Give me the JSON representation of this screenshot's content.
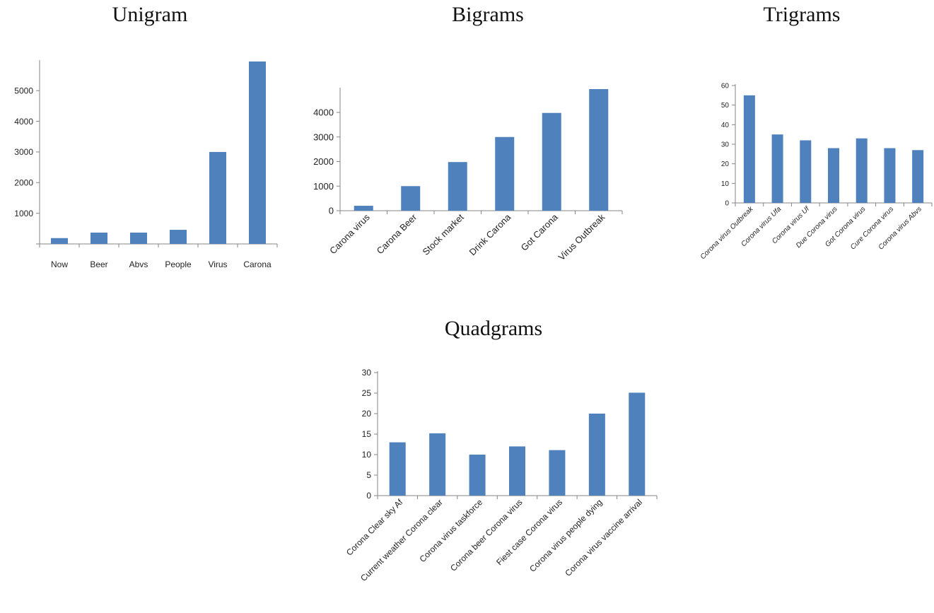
{
  "colors": {
    "bar": "#4f81bd",
    "axis": "#868686",
    "text": "#222222"
  },
  "chart_data": [
    {
      "id": "unigram",
      "type": "bar",
      "title": "Unigram",
      "categories": [
        "Now",
        "Beer",
        "Abvs",
        "People",
        "Virus",
        "Carona"
      ],
      "values": [
        190,
        370,
        370,
        460,
        3000,
        5950
      ],
      "ylim": [
        0,
        5950
      ],
      "yticks": [
        1000,
        2000,
        3000,
        4000,
        5000
      ],
      "xlabel": "",
      "ylabel": "",
      "grid": false,
      "legend": "none"
    },
    {
      "id": "bigrams",
      "type": "bar",
      "title": "Bigrams",
      "categories": [
        "Carona virus",
        "Carona Beer",
        "Stock market",
        "Drink Carona",
        "Got Carona",
        "Virus Outbreak"
      ],
      "values": [
        200,
        1000,
        1980,
        3000,
        3980,
        4950
      ],
      "ylim": [
        0,
        4950
      ],
      "yticks": [
        0,
        1000,
        2000,
        3000,
        4000
      ],
      "xlabel": "",
      "ylabel": "",
      "grid": false,
      "legend": "none"
    },
    {
      "id": "trigrams",
      "type": "bar",
      "title": "Trigrams",
      "categories": [
        "Corona virus Outbreak",
        "Corona virus Ufa",
        "Corona virus Uf",
        "Due Corona virus",
        "Got Corona virus",
        "Cure Corona virus",
        "Corona virus Abvs"
      ],
      "values": [
        55,
        35,
        32,
        28,
        33,
        28,
        27
      ],
      "ylim": [
        0,
        60
      ],
      "yticks": [
        0,
        10,
        20,
        30,
        40,
        50,
        60
      ],
      "xlabel": "",
      "ylabel": "",
      "grid": false,
      "legend": "none"
    },
    {
      "id": "quadgrams",
      "type": "bar",
      "title": "Quadgrams",
      "categories": [
        "Corona Clear sky Af",
        "Current weather Corona clear",
        "Corona virus taskforce",
        "Corona beer Corona virus",
        "Fiest case Corona virus",
        "Corona virus people dying",
        "Corona virus vaccine arrival"
      ],
      "values": [
        13,
        15.2,
        10,
        12,
        11.1,
        20,
        25.1
      ],
      "ylim": [
        0,
        30
      ],
      "yticks": [
        0,
        5,
        10,
        15,
        20,
        25,
        30
      ],
      "xlabel": "",
      "ylabel": "",
      "grid": false,
      "legend": "none"
    }
  ]
}
